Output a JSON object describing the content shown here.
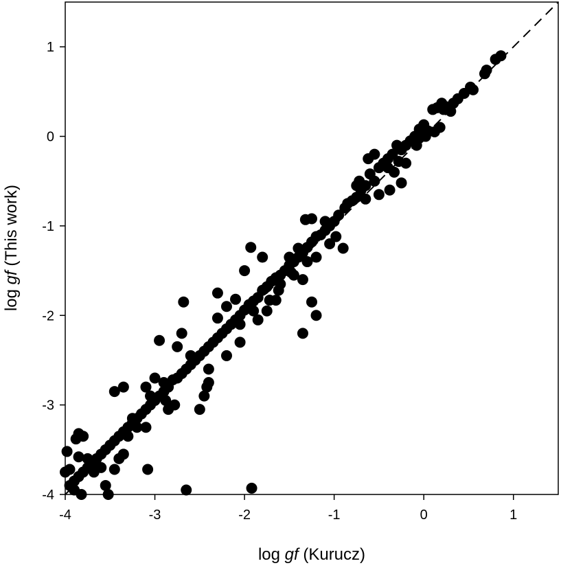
{
  "chart_data": {
    "type": "scatter",
    "title": "",
    "xlabel": {
      "prefix": "log ",
      "italic": "gf",
      "suffix": " (Kurucz)"
    },
    "ylabel": {
      "prefix": "log ",
      "italic": "gf",
      "suffix": " (This work)"
    },
    "xlim": [
      -4,
      1.5
    ],
    "ylim": [
      -4,
      1.5
    ],
    "xticks": [
      -4,
      -3,
      -2,
      -1,
      0,
      1
    ],
    "yticks": [
      -4,
      -3,
      -2,
      -1,
      0,
      1
    ],
    "xtick_labels": [
      "-4",
      "-3",
      "-2",
      "-1",
      "0",
      "1"
    ],
    "ytick_labels": [
      "-4",
      "-3",
      "-2",
      "-1",
      "0",
      "1"
    ],
    "grid": false,
    "reference_line": {
      "style": "dashed",
      "x": [
        -4,
        1.5
      ],
      "y": [
        -4,
        1.5
      ]
    },
    "marker_color": "#000000",
    "points": [
      [
        0.86,
        0.9
      ],
      [
        0.8,
        0.86
      ],
      [
        0.7,
        0.74
      ],
      [
        0.68,
        0.7
      ],
      [
        0.52,
        0.55
      ],
      [
        0.45,
        0.48
      ],
      [
        0.38,
        0.42
      ],
      [
        0.33,
        0.37
      ],
      [
        0.25,
        0.33
      ],
      [
        0.22,
        0.3
      ],
      [
        0.2,
        0.37
      ],
      [
        0.15,
        0.32
      ],
      [
        0.1,
        0.3
      ],
      [
        0.18,
        0.1
      ],
      [
        0.12,
        0.05
      ],
      [
        0.05,
        0.06
      ],
      [
        0.0,
        0.13
      ],
      [
        -0.05,
        0.08
      ],
      [
        0.02,
        0.0
      ],
      [
        -0.1,
        0.0
      ],
      [
        -0.15,
        -0.05
      ],
      [
        -0.08,
        -0.1
      ],
      [
        -0.2,
        -0.1
      ],
      [
        -0.25,
        -0.15
      ],
      [
        -0.3,
        -0.1
      ],
      [
        -0.35,
        -0.2
      ],
      [
        -0.28,
        -0.28
      ],
      [
        -0.4,
        -0.25
      ],
      [
        -0.45,
        -0.3
      ],
      [
        -0.5,
        -0.35
      ],
      [
        -0.33,
        -0.4
      ],
      [
        -0.6,
        -0.42
      ],
      [
        -0.55,
        -0.5
      ],
      [
        -0.65,
        -0.55
      ],
      [
        -0.7,
        -0.6
      ],
      [
        -0.75,
        -0.68
      ],
      [
        -0.8,
        -0.72
      ],
      [
        -0.88,
        -0.8
      ],
      [
        -0.95,
        -0.88
      ],
      [
        -1.0,
        -0.95
      ],
      [
        -1.05,
        -1.0
      ],
      [
        -1.1,
        -1.05
      ],
      [
        -1.15,
        -1.1
      ],
      [
        -1.2,
        -1.12
      ],
      [
        -1.25,
        -1.18
      ],
      [
        -1.3,
        -1.24
      ],
      [
        -1.35,
        -1.3
      ],
      [
        -1.4,
        -1.35
      ],
      [
        -1.45,
        -1.4
      ],
      [
        -1.5,
        -1.44
      ],
      [
        -1.55,
        -1.5
      ],
      [
        -1.6,
        -1.55
      ],
      [
        -1.65,
        -1.58
      ],
      [
        -1.7,
        -1.62
      ],
      [
        -1.75,
        -1.68
      ],
      [
        -1.8,
        -1.72
      ],
      [
        -1.85,
        -1.8
      ],
      [
        -1.9,
        -1.84
      ],
      [
        -1.95,
        -1.88
      ],
      [
        -2.0,
        -1.94
      ],
      [
        -2.05,
        -2.0
      ],
      [
        -2.1,
        -2.05
      ],
      [
        -2.15,
        -2.1
      ],
      [
        -2.2,
        -2.15
      ],
      [
        -2.25,
        -2.2
      ],
      [
        -2.3,
        -2.25
      ],
      [
        -2.35,
        -2.3
      ],
      [
        -2.4,
        -2.35
      ],
      [
        -2.45,
        -2.4
      ],
      [
        -2.5,
        -2.45
      ],
      [
        -2.55,
        -2.5
      ],
      [
        -2.6,
        -2.55
      ],
      [
        -2.65,
        -2.6
      ],
      [
        -2.7,
        -2.65
      ],
      [
        -2.75,
        -2.7
      ],
      [
        -2.8,
        -2.72
      ],
      [
        -2.85,
        -2.8
      ],
      [
        -2.9,
        -2.85
      ],
      [
        -2.95,
        -2.9
      ],
      [
        -3.0,
        -2.95
      ],
      [
        -3.05,
        -3.0
      ],
      [
        -3.1,
        -3.05
      ],
      [
        -3.15,
        -3.1
      ],
      [
        -3.2,
        -3.15
      ],
      [
        -3.25,
        -3.2
      ],
      [
        -3.3,
        -3.25
      ],
      [
        -3.35,
        -3.3
      ],
      [
        -3.4,
        -3.35
      ],
      [
        -3.45,
        -3.4
      ],
      [
        -3.5,
        -3.45
      ],
      [
        -3.55,
        -3.5
      ],
      [
        -3.6,
        -3.55
      ],
      [
        -3.65,
        -3.6
      ],
      [
        -3.7,
        -3.65
      ],
      [
        -3.75,
        -3.7
      ],
      [
        -3.8,
        -3.75
      ],
      [
        -3.85,
        -3.8
      ],
      [
        -3.9,
        -3.85
      ],
      [
        -3.95,
        -3.9
      ],
      [
        -0.75,
        -0.55
      ],
      [
        -0.5,
        -0.65
      ],
      [
        -0.38,
        -0.6
      ],
      [
        -0.2,
        -0.3
      ],
      [
        -0.25,
        -0.52
      ],
      [
        -0.55,
        -0.2
      ],
      [
        -0.62,
        -0.25
      ],
      [
        -0.72,
        -0.5
      ],
      [
        -0.9,
        -1.25
      ],
      [
        -0.98,
        -1.12
      ],
      [
        -1.05,
        -1.2
      ],
      [
        -1.2,
        -1.35
      ],
      [
        -1.25,
        -0.92
      ],
      [
        -1.32,
        -0.93
      ],
      [
        -1.3,
        -1.4
      ],
      [
        -1.35,
        -1.6
      ],
      [
        -1.45,
        -1.55
      ],
      [
        -1.48,
        -1.52
      ],
      [
        -1.62,
        -1.72
      ],
      [
        -1.65,
        -1.83
      ],
      [
        -1.72,
        -1.83
      ],
      [
        -1.25,
        -1.85
      ],
      [
        -1.2,
        -2.0
      ],
      [
        -1.35,
        -2.2
      ],
      [
        -1.8,
        -1.35
      ],
      [
        -1.93,
        -1.24
      ],
      [
        -1.9,
        -1.95
      ],
      [
        -2.0,
        -1.5
      ],
      [
        -2.1,
        -1.82
      ],
      [
        -2.05,
        -2.1
      ],
      [
        -2.2,
        -1.9
      ],
      [
        -2.3,
        -1.75
      ],
      [
        -2.3,
        -2.03
      ],
      [
        -2.4,
        -2.6
      ],
      [
        -2.4,
        -2.75
      ],
      [
        -2.45,
        -2.9
      ],
      [
        -2.5,
        -3.05
      ],
      [
        -2.42,
        -2.8
      ],
      [
        -2.6,
        -2.45
      ],
      [
        -2.68,
        -1.85
      ],
      [
        -2.7,
        -2.2
      ],
      [
        -2.75,
        -2.35
      ],
      [
        -2.78,
        -3.0
      ],
      [
        -2.85,
        -3.05
      ],
      [
        -2.95,
        -2.28
      ],
      [
        -3.1,
        -2.8
      ],
      [
        -3.05,
        -2.9
      ],
      [
        -3.1,
        -3.25
      ],
      [
        -3.2,
        -3.25
      ],
      [
        -3.25,
        -3.15
      ],
      [
        -3.3,
        -3.35
      ],
      [
        -3.35,
        -3.55
      ],
      [
        -3.4,
        -3.6
      ],
      [
        -3.45,
        -2.85
      ],
      [
        -3.35,
        -2.8
      ],
      [
        -3.45,
        -3.72
      ],
      [
        -3.55,
        -3.9
      ],
      [
        -3.6,
        -3.7
      ],
      [
        -3.68,
        -3.75
      ],
      [
        -3.8,
        -3.35
      ],
      [
        -3.85,
        -3.32
      ],
      [
        -3.88,
        -3.38
      ],
      [
        -3.9,
        -3.95
      ],
      [
        -3.95,
        -3.72
      ],
      [
        -3.98,
        -3.52
      ],
      [
        -4.0,
        -3.75
      ],
      [
        -3.85,
        -3.58
      ],
      [
        -3.75,
        -3.6
      ],
      [
        -3.82,
        -4.0
      ],
      [
        -3.52,
        -4.0
      ],
      [
        -3.08,
        -3.72
      ],
      [
        -2.65,
        -3.95
      ],
      [
        -1.92,
        -3.93
      ],
      [
        -3.0,
        -2.7
      ],
      [
        -2.9,
        -2.75
      ],
      [
        -2.88,
        -2.95
      ],
      [
        -2.2,
        -2.45
      ],
      [
        -2.05,
        -2.3
      ],
      [
        -1.85,
        -2.05
      ],
      [
        -1.75,
        -1.95
      ],
      [
        -1.6,
        -1.65
      ],
      [
        -1.5,
        -1.35
      ],
      [
        -1.4,
        -1.25
      ],
      [
        -1.1,
        -0.95
      ],
      [
        -0.85,
        -0.75
      ],
      [
        -0.65,
        -0.7
      ],
      [
        -0.4,
        -0.35
      ],
      [
        -0.05,
        -0.02
      ],
      [
        0.3,
        0.28
      ],
      [
        0.55,
        0.52
      ]
    ]
  }
}
